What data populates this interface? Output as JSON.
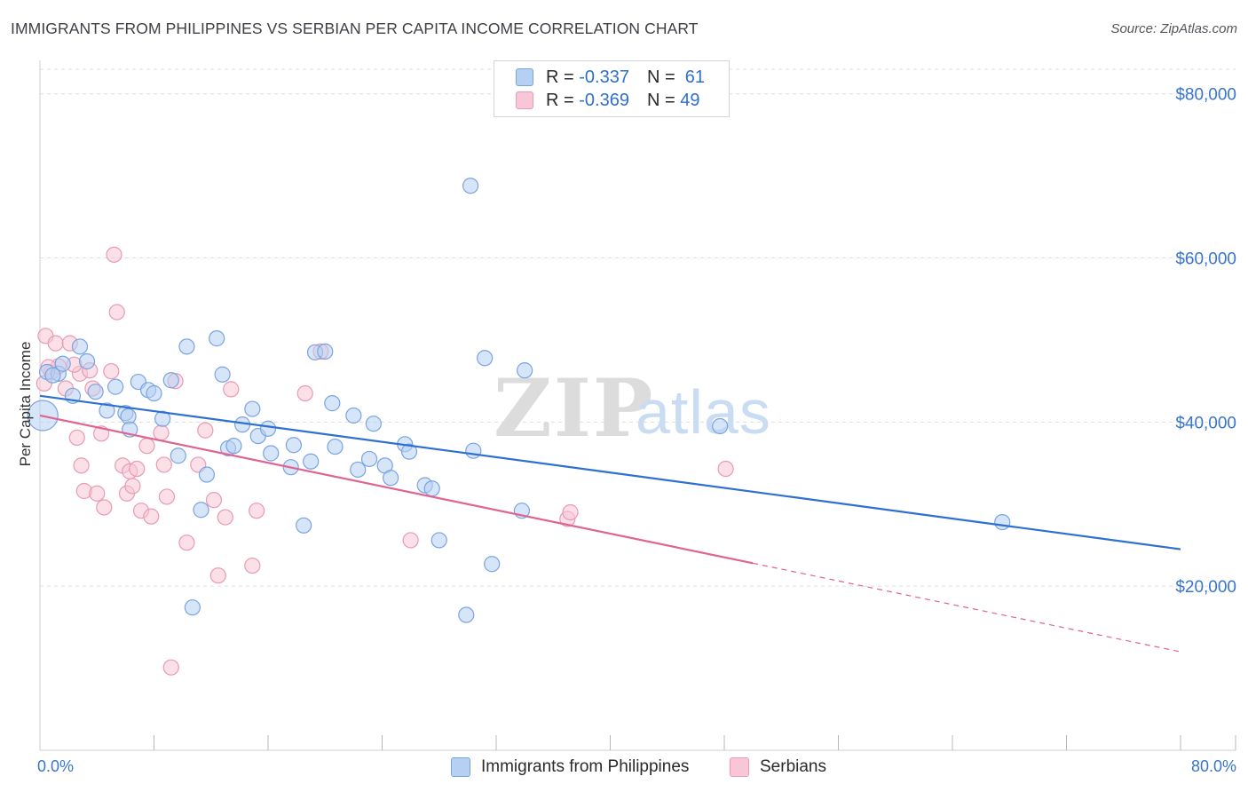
{
  "title": "IMMIGRANTS FROM PHILIPPINES VS SERBIAN PER CAPITA INCOME CORRELATION CHART",
  "source": "Source: ZipAtlas.com",
  "watermark": {
    "zip": "ZIP",
    "atlas": "atlas"
  },
  "legend": {
    "rows": [
      {
        "r_label": "R =",
        "r_value": "-0.337",
        "n_label": "N =",
        "n_value": "61"
      },
      {
        "r_label": "R =",
        "r_value": "-0.369",
        "n_label": "N =",
        "n_value": "49"
      }
    ]
  },
  "colors": {
    "blue_fill": "#b6d0f3",
    "blue_stroke": "#7aa4e0",
    "blue_line": "#2e6fd2",
    "pink_fill": "#f8c6d6",
    "pink_stroke": "#e99ab4",
    "pink_line": "#e06390",
    "grid": "#dcdde0",
    "axis_text": "#3874d0"
  },
  "chart_data": {
    "type": "scatter",
    "title": "IMMIGRANTS FROM PHILIPPINES VS SERBIAN PER CAPITA INCOME CORRELATION CHART",
    "xlabel": "",
    "ylabel": "Per Capita Income",
    "xlim": [
      0,
      80
    ],
    "ylim": [
      0,
      83000
    ],
    "x_tick_labels": [
      "0.0%",
      "80.0%"
    ],
    "y_ticks": [
      20000,
      40000,
      60000,
      80000
    ],
    "y_tick_labels": [
      "$20,000",
      "$40,000",
      "$60,000",
      "$80,000"
    ],
    "grid": true,
    "series": [
      {
        "name": "Immigrants from Philippines",
        "r": -0.337,
        "n": 61,
        "trend": {
          "x": [
            0,
            80
          ],
          "y": [
            43200,
            24500
          ],
          "dashed_from_x": null
        },
        "points": [
          [
            0.2,
            40800
          ],
          [
            0.5,
            46100
          ],
          [
            1.3,
            45900
          ],
          [
            1.6,
            47100
          ],
          [
            2.3,
            43200
          ],
          [
            2.8,
            49200
          ],
          [
            3.3,
            47400
          ],
          [
            3.9,
            43700
          ],
          [
            4.7,
            41400
          ],
          [
            5.3,
            44300
          ],
          [
            6.0,
            41100
          ],
          [
            6.2,
            40700
          ],
          [
            6.3,
            39100
          ],
          [
            6.9,
            44900
          ],
          [
            7.6,
            43900
          ],
          [
            8.0,
            43500
          ],
          [
            8.6,
            40400
          ],
          [
            9.2,
            45100
          ],
          [
            9.7,
            35900
          ],
          [
            10.3,
            49200
          ],
          [
            10.7,
            17400
          ],
          [
            11.3,
            29300
          ],
          [
            11.7,
            33600
          ],
          [
            12.4,
            50200
          ],
          [
            12.8,
            45800
          ],
          [
            13.2,
            36800
          ],
          [
            13.6,
            37100
          ],
          [
            14.2,
            39700
          ],
          [
            14.9,
            41600
          ],
          [
            15.3,
            38300
          ],
          [
            16.0,
            39200
          ],
          [
            16.2,
            36200
          ],
          [
            17.6,
            34500
          ],
          [
            17.8,
            37200
          ],
          [
            18.5,
            27400
          ],
          [
            19.0,
            35200
          ],
          [
            19.3,
            48500
          ],
          [
            20.0,
            48600
          ],
          [
            20.5,
            42300
          ],
          [
            20.7,
            37000
          ],
          [
            22.0,
            40800
          ],
          [
            22.3,
            34200
          ],
          [
            23.1,
            35500
          ],
          [
            23.4,
            39800
          ],
          [
            24.2,
            34700
          ],
          [
            24.6,
            33200
          ],
          [
            25.6,
            37300
          ],
          [
            25.9,
            36400
          ],
          [
            27.0,
            32300
          ],
          [
            27.5,
            31900
          ],
          [
            28.0,
            25600
          ],
          [
            29.9,
            16500
          ],
          [
            30.2,
            68800
          ],
          [
            30.4,
            36500
          ],
          [
            31.2,
            47800
          ],
          [
            31.7,
            22700
          ],
          [
            33.8,
            29200
          ],
          [
            34.0,
            46300
          ],
          [
            47.7,
            39500
          ],
          [
            67.5,
            27800
          ],
          [
            0.9,
            45700
          ]
        ]
      },
      {
        "name": "Serbians",
        "r": -0.369,
        "n": 49,
        "trend": {
          "x": [
            0,
            80
          ],
          "y": [
            40800,
            12000
          ],
          "dashed_from_x": 50
        },
        "points": [
          [
            0.3,
            44700
          ],
          [
            0.4,
            50500
          ],
          [
            0.8,
            46100
          ],
          [
            1.1,
            49600
          ],
          [
            1.3,
            46800
          ],
          [
            1.8,
            44100
          ],
          [
            2.1,
            49600
          ],
          [
            2.6,
            38100
          ],
          [
            2.8,
            45900
          ],
          [
            2.9,
            34700
          ],
          [
            3.1,
            31600
          ],
          [
            3.5,
            46300
          ],
          [
            3.7,
            44100
          ],
          [
            4.0,
            31300
          ],
          [
            4.3,
            38600
          ],
          [
            4.5,
            29600
          ],
          [
            5.0,
            46200
          ],
          [
            5.2,
            60400
          ],
          [
            5.4,
            53400
          ],
          [
            5.8,
            34700
          ],
          [
            6.1,
            31300
          ],
          [
            6.3,
            34000
          ],
          [
            6.5,
            32200
          ],
          [
            6.8,
            34300
          ],
          [
            7.1,
            29200
          ],
          [
            7.5,
            37100
          ],
          [
            7.8,
            28500
          ],
          [
            8.5,
            38700
          ],
          [
            8.7,
            34800
          ],
          [
            8.9,
            30900
          ],
          [
            9.2,
            10100
          ],
          [
            9.5,
            45000
          ],
          [
            10.3,
            25300
          ],
          [
            11.1,
            34800
          ],
          [
            11.6,
            39000
          ],
          [
            12.2,
            30500
          ],
          [
            12.5,
            21300
          ],
          [
            13.0,
            28400
          ],
          [
            13.4,
            44000
          ],
          [
            14.9,
            22500
          ],
          [
            15.2,
            29200
          ],
          [
            18.6,
            43500
          ],
          [
            19.7,
            48600
          ],
          [
            26.0,
            25600
          ],
          [
            37.0,
            28200
          ],
          [
            37.2,
            29000
          ],
          [
            48.1,
            34300
          ],
          [
            0.6,
            46700
          ],
          [
            2.4,
            47000
          ]
        ]
      }
    ]
  },
  "bottom_legend": {
    "items": [
      {
        "label": "Immigrants from Philippines"
      },
      {
        "label": "Serbians"
      }
    ]
  }
}
